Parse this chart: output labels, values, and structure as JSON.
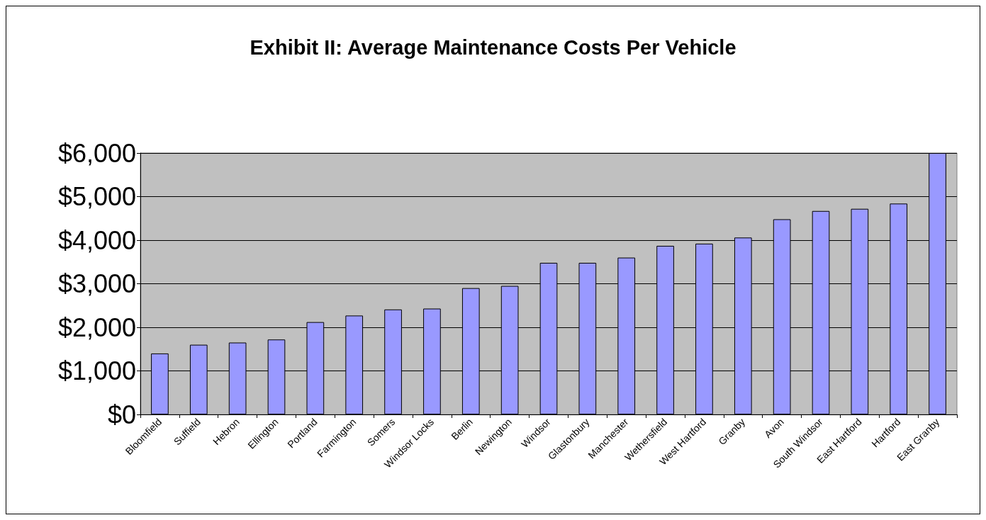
{
  "chart_data": {
    "type": "bar",
    "title": "Exhibit II: Average Maintenance Costs Per Vehicle",
    "categories": [
      "Bloomfield",
      "Suffield",
      "Hebron",
      "Ellington",
      "Portland",
      "Farmington",
      "Somers",
      "Windsor Locks",
      "Berlin",
      "Newington",
      "Windsor",
      "Glastonbury",
      "Manchester",
      "Wethersfield",
      "West Hartford",
      "Granby",
      "Avon",
      "South Windsor",
      "East Hartford",
      "Hartford",
      "East Granby"
    ],
    "values": [
      1400,
      1600,
      1650,
      1720,
      2120,
      2270,
      2410,
      2430,
      2900,
      2950,
      3480,
      3480,
      3600,
      3870,
      3920,
      4060,
      4480,
      4670,
      4720,
      4840,
      6000
    ],
    "color": "#9999ff",
    "ylim": [
      0,
      6000
    ],
    "yticks": [
      {
        "value": 0,
        "label": "$0"
      },
      {
        "value": 1000,
        "label": "$1,000"
      },
      {
        "value": 2000,
        "label": "$2,000"
      },
      {
        "value": 3000,
        "label": "$3,000"
      },
      {
        "value": 4000,
        "label": "$4,000"
      },
      {
        "value": 5000,
        "label": "$5,000"
      },
      {
        "value": 6000,
        "label": "$6,000"
      }
    ],
    "grid": "y"
  }
}
